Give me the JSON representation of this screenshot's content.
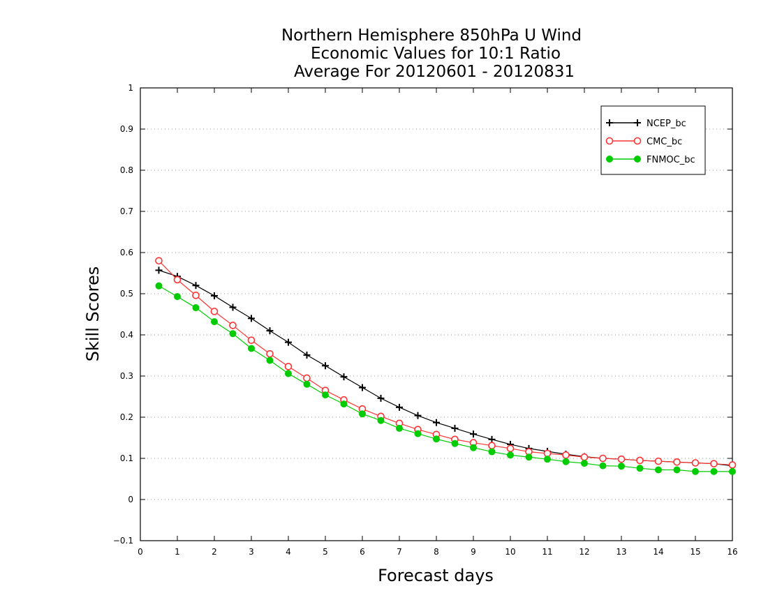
{
  "chart_data": {
    "type": "line",
    "title_lines": [
      "Northern Hemisphere 850hPa U Wind",
      "Economic Values for 10:1 Ratio",
      "Average For 20120601 - 20120831"
    ],
    "xlabel": "Forecast days",
    "ylabel": "Skill Scores",
    "xlim": [
      0,
      16
    ],
    "ylim": [
      -0.1,
      1
    ],
    "xticks": [
      0,
      1,
      2,
      3,
      4,
      5,
      6,
      7,
      8,
      9,
      10,
      11,
      12,
      13,
      14,
      15,
      16
    ],
    "yticks": [
      -0.1,
      0,
      0.1,
      0.2,
      0.3,
      0.4,
      0.5,
      0.6,
      0.7,
      0.8,
      0.9,
      1
    ],
    "ytick_labels": [
      "−0.1",
      "0",
      "0.1",
      "0.2",
      "0.3",
      "0.4",
      "0.5",
      "0.6",
      "0.7",
      "0.8",
      "0.9",
      "1"
    ],
    "grid": "y-dotted",
    "legend_position": "top-right",
    "x": [
      0.5,
      1,
      1.5,
      2,
      2.5,
      3,
      3.5,
      4,
      4.5,
      5,
      5.5,
      6,
      6.5,
      7,
      7.5,
      8,
      8.5,
      9,
      9.5,
      10,
      10.5,
      11,
      11.5,
      12,
      12.5,
      13,
      13.5,
      14,
      14.5,
      15,
      15.5,
      16
    ],
    "series": [
      {
        "name": "NCEP_bc",
        "color": "#000000",
        "marker": "plus",
        "values": [
          0.557,
          0.542,
          0.52,
          0.495,
          0.467,
          0.44,
          0.41,
          0.382,
          0.351,
          0.325,
          0.298,
          0.272,
          0.246,
          0.224,
          0.204,
          0.187,
          0.173,
          0.159,
          0.146,
          0.134,
          0.124,
          0.117,
          0.11,
          0.104,
          0.1,
          0.098,
          0.095,
          0.093,
          0.091,
          0.089,
          0.087,
          0.082
        ]
      },
      {
        "name": "CMC_bc",
        "color": "#ff3333",
        "marker": "open-circle",
        "values": [
          0.58,
          0.534,
          0.496,
          0.457,
          0.423,
          0.387,
          0.354,
          0.323,
          0.295,
          0.265,
          0.242,
          0.22,
          0.202,
          0.185,
          0.17,
          0.158,
          0.146,
          0.138,
          0.131,
          0.124,
          0.116,
          0.112,
          0.108,
          0.103,
          0.1,
          0.098,
          0.095,
          0.093,
          0.091,
          0.089,
          0.087,
          0.084
        ]
      },
      {
        "name": "FNMOC_bc",
        "color": "#00cc00",
        "marker": "filled-circle",
        "values": [
          0.519,
          0.493,
          0.466,
          0.432,
          0.403,
          0.367,
          0.338,
          0.306,
          0.28,
          0.254,
          0.232,
          0.208,
          0.192,
          0.173,
          0.16,
          0.147,
          0.136,
          0.126,
          0.116,
          0.108,
          0.103,
          0.098,
          0.092,
          0.088,
          0.082,
          0.081,
          0.076,
          0.072,
          0.072,
          0.068,
          0.068,
          0.068
        ]
      }
    ]
  }
}
